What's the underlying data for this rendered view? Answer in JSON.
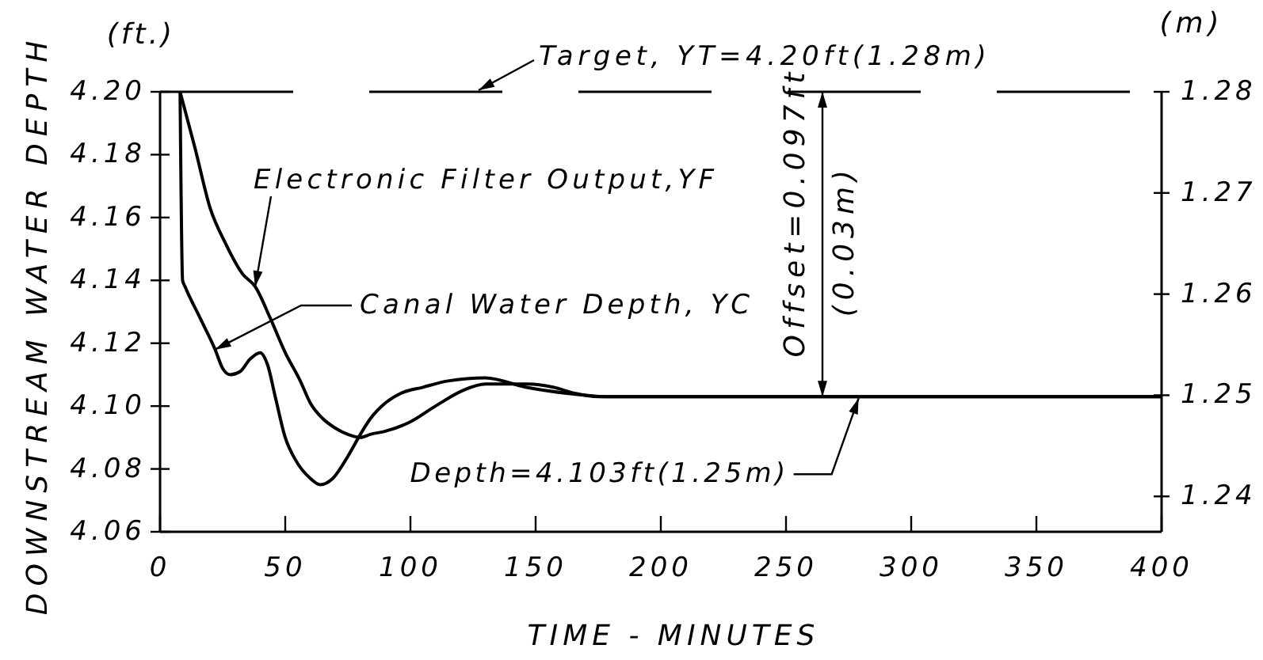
{
  "chart_data": {
    "type": "line",
    "xlabel": "TIME - MINUTES",
    "ylabel": "DOWNSTREAM WATER DEPTH",
    "y2label": "(m)",
    "xlim": [
      0,
      400
    ],
    "xticks": [
      0,
      50,
      100,
      150,
      200,
      250,
      300,
      350,
      400
    ],
    "ylim": [
      4.06,
      4.2
    ],
    "yticks": [
      4.06,
      4.08,
      {
        "value": 4.1,
        "label": "4.10"
      },
      4.12,
      4.14,
      4.16,
      4.18,
      {
        "value": 4.2,
        "label": "4.20"
      }
    ],
    "y2lim": [
      1.2365,
      1.28
    ],
    "y2ticks": [
      1.24,
      1.25,
      1.26,
      1.27,
      1.28
    ],
    "marker": "none",
    "line_style": "solid",
    "series": [
      {
        "name": "Electronic Filter Output,YF",
        "color": "#000000",
        "x": [
          8,
          14,
          20,
          26,
          33,
          38,
          44,
          50,
          56,
          60,
          65,
          70,
          75,
          80,
          84,
          90,
          100,
          110,
          121,
          130,
          138,
          147,
          157,
          166,
          175,
          200,
          250,
          300,
          400
        ],
        "values": [
          4.2,
          4.182,
          4.163,
          4.152,
          4.142,
          4.138,
          4.128,
          4.117,
          4.108,
          4.101,
          4.096,
          4.093,
          4.091,
          4.09,
          4.091,
          4.092,
          4.095,
          4.1,
          4.105,
          4.107,
          4.107,
          4.107,
          4.106,
          4.104,
          4.103,
          4.103,
          4.103,
          4.103,
          4.103
        ]
      },
      {
        "name": "Canal Water Depth, YC",
        "color": "#000000",
        "x": [
          8,
          9,
          10,
          16,
          22,
          25,
          28,
          32,
          36,
          40,
          43,
          46,
          50,
          54,
          60,
          64,
          69,
          75,
          80,
          84,
          90,
          96,
          105,
          115,
          130,
          146,
          163,
          178,
          200,
          250,
          300,
          400
        ],
        "values": [
          4.2,
          4.14,
          4.138,
          4.128,
          4.118,
          4.112,
          4.11,
          4.111,
          4.115,
          4.117,
          4.113,
          4.103,
          4.09,
          4.083,
          4.077,
          4.075,
          4.077,
          4.084,
          4.091,
          4.096,
          4.101,
          4.104,
          4.106,
          4.108,
          4.109,
          4.106,
          4.104,
          4.103,
          4.103,
          4.103,
          4.103,
          4.103
        ]
      }
    ],
    "ref_lines": [
      {
        "axis": "y",
        "value": 4.2,
        "label": "Target, YT=4.20ft(1.28m)",
        "line_style": "dashed"
      }
    ],
    "annotations": [
      "(ft.)",
      "Offset=0.097ft",
      "(0.03m)",
      {
        "text": "Depth=4.103ft(1.25m)",
        "x": 279,
        "y": 4.103
      }
    ]
  }
}
